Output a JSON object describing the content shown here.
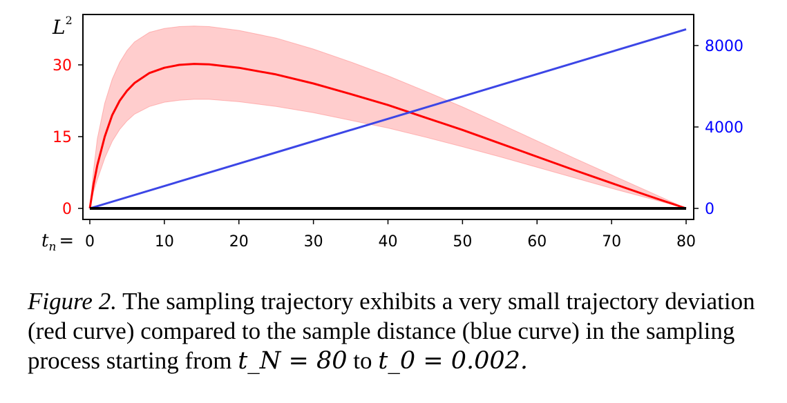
{
  "chart_data": {
    "type": "line",
    "x_label": "t_n =",
    "x_ticks": [
      0,
      10,
      20,
      30,
      40,
      50,
      60,
      70,
      80
    ],
    "xlim": [
      0,
      80
    ],
    "left_axis": {
      "label": "L²",
      "ticks": [
        0,
        15,
        30
      ],
      "ylim": [
        0,
        39
      ],
      "color": "#ff0000"
    },
    "right_axis": {
      "ticks": [
        0,
        4000,
        8000
      ],
      "ylim": [
        0,
        9700
      ],
      "color": "#0000ff"
    },
    "series": [
      {
        "axis": "left",
        "style": "line",
        "color": "#ff0000",
        "x": [
          0,
          0.5,
          1,
          2,
          3,
          4,
          5,
          6,
          8,
          10,
          12,
          14,
          16,
          20,
          25,
          30,
          35,
          40,
          45,
          50,
          55,
          60,
          65,
          70,
          75,
          80
        ],
        "y": [
          0,
          5,
          9,
          15,
          19.5,
          22.5,
          24.6,
          26.2,
          28.3,
          29.4,
          30,
          30.2,
          30.1,
          29.4,
          28,
          26.1,
          23.9,
          21.6,
          19,
          16.4,
          13.6,
          10.8,
          8,
          5.3,
          2.6,
          0
        ]
      },
      {
        "axis": "left",
        "style": "band",
        "color": "#ff9090",
        "x": [
          0,
          0.5,
          1,
          2,
          3,
          4,
          5,
          6,
          8,
          10,
          12,
          14,
          16,
          20,
          25,
          30,
          35,
          40,
          45,
          50,
          55,
          60,
          65,
          70,
          75,
          80
        ],
        "upper": [
          0,
          8,
          14.5,
          22,
          27,
          30.5,
          33,
          34.8,
          36.8,
          37.6,
          38,
          38.1,
          38,
          37.2,
          35.6,
          33.3,
          30.6,
          27.7,
          24.5,
          21.2,
          17.7,
          14.1,
          10.5,
          7,
          3.5,
          0
        ],
        "lower": [
          0,
          3.5,
          6,
          10.5,
          14,
          16.5,
          18.3,
          19.7,
          21.3,
          22.2,
          22.6,
          22.8,
          22.8,
          22.3,
          21.3,
          20,
          18.4,
          16.8,
          14.9,
          12.9,
          10.8,
          8.6,
          6.4,
          4.2,
          2.1,
          0
        ]
      },
      {
        "axis": "right",
        "style": "line",
        "color": "#3c46e6",
        "x": [
          0,
          80
        ],
        "y": [
          0,
          8800
        ]
      },
      {
        "axis": "left",
        "style": "line",
        "color": "#000000",
        "x": [
          0,
          80
        ],
        "y": [
          0,
          0
        ]
      }
    ]
  },
  "caption": {
    "figure_label": "Figure 2.",
    "text": "The sampling trajectory exhibits a very small trajectory deviation (red curve) compared to the sample distance (blue curve) in the sampling process starting from",
    "math_1": "t_N = 80",
    "connector": "to",
    "math_2": "t_0 = 0.002."
  }
}
